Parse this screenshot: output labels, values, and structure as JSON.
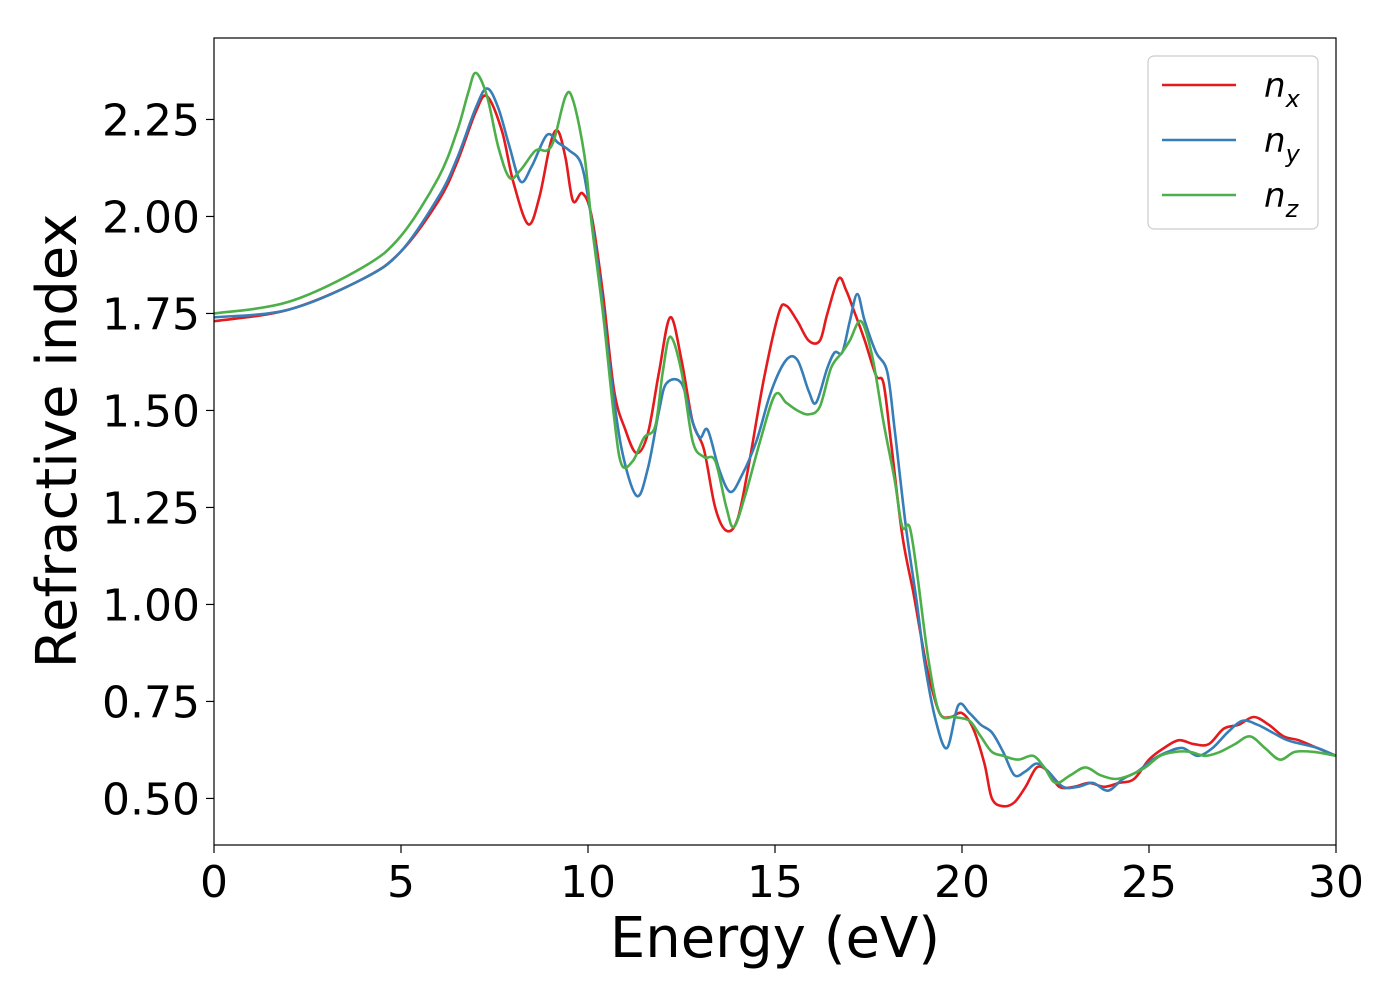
{
  "chart_data": {
    "type": "line",
    "title": "",
    "xlabel": "Energy (eV)",
    "ylabel": "Refractive index",
    "xlim": [
      0,
      30
    ],
    "ylim": [
      0.38,
      2.46
    ],
    "xticks": [
      0,
      5,
      10,
      15,
      20,
      25,
      30
    ],
    "xtick_labels": [
      "0",
      "5",
      "10",
      "15",
      "20",
      "25",
      "30"
    ],
    "yticks": [
      0.5,
      0.75,
      1.0,
      1.25,
      1.5,
      1.75,
      2.0,
      2.25
    ],
    "ytick_labels": [
      "0.50",
      "0.75",
      "1.00",
      "1.25",
      "1.50",
      "1.75",
      "2.00",
      "2.25"
    ],
    "grid": false,
    "legend_position": "top-right",
    "series": [
      {
        "name": "n_x",
        "base": "n",
        "sub": "x",
        "color": "#e41a1c",
        "points": [
          [
            0,
            1.73
          ],
          [
            2,
            1.76
          ],
          [
            4,
            1.84
          ],
          [
            5,
            1.91
          ],
          [
            6,
            2.04
          ],
          [
            6.5,
            2.14
          ],
          [
            7,
            2.27
          ],
          [
            7.3,
            2.31
          ],
          [
            7.7,
            2.22
          ],
          [
            8.0,
            2.09
          ],
          [
            8.4,
            1.98
          ],
          [
            8.7,
            2.05
          ],
          [
            9.0,
            2.19
          ],
          [
            9.2,
            2.22
          ],
          [
            9.4,
            2.15
          ],
          [
            9.6,
            2.04
          ],
          [
            9.85,
            2.06
          ],
          [
            10.1,
            2.0
          ],
          [
            10.4,
            1.8
          ],
          [
            10.7,
            1.55
          ],
          [
            11.0,
            1.45
          ],
          [
            11.3,
            1.39
          ],
          [
            11.6,
            1.44
          ],
          [
            11.9,
            1.6
          ],
          [
            12.2,
            1.74
          ],
          [
            12.5,
            1.63
          ],
          [
            12.8,
            1.47
          ],
          [
            13.1,
            1.4
          ],
          [
            13.4,
            1.25
          ],
          [
            13.7,
            1.19
          ],
          [
            14.0,
            1.22
          ],
          [
            14.3,
            1.36
          ],
          [
            14.7,
            1.58
          ],
          [
            15.1,
            1.75
          ],
          [
            15.3,
            1.77
          ],
          [
            15.6,
            1.73
          ],
          [
            15.9,
            1.68
          ],
          [
            16.2,
            1.68
          ],
          [
            16.4,
            1.75
          ],
          [
            16.7,
            1.84
          ],
          [
            16.9,
            1.81
          ],
          [
            17.1,
            1.76
          ],
          [
            17.4,
            1.68
          ],
          [
            17.7,
            1.59
          ],
          [
            17.9,
            1.57
          ],
          [
            18.1,
            1.42
          ],
          [
            18.4,
            1.18
          ],
          [
            18.7,
            1.03
          ],
          [
            18.9,
            0.92
          ],
          [
            19.1,
            0.82
          ],
          [
            19.4,
            0.72
          ],
          [
            19.7,
            0.71
          ],
          [
            20.0,
            0.72
          ],
          [
            20.3,
            0.68
          ],
          [
            20.6,
            0.59
          ],
          [
            20.8,
            0.5
          ],
          [
            21.1,
            0.48
          ],
          [
            21.4,
            0.49
          ],
          [
            21.7,
            0.53
          ],
          [
            22.0,
            0.58
          ],
          [
            22.3,
            0.57
          ],
          [
            22.6,
            0.53
          ],
          [
            23.0,
            0.53
          ],
          [
            23.4,
            0.54
          ],
          [
            23.8,
            0.53
          ],
          [
            24.2,
            0.54
          ],
          [
            24.6,
            0.55
          ],
          [
            25.0,
            0.6
          ],
          [
            25.4,
            0.63
          ],
          [
            25.8,
            0.65
          ],
          [
            26.2,
            0.64
          ],
          [
            26.6,
            0.64
          ],
          [
            27.0,
            0.68
          ],
          [
            27.4,
            0.69
          ],
          [
            27.8,
            0.71
          ],
          [
            28.2,
            0.69
          ],
          [
            28.6,
            0.66
          ],
          [
            29.0,
            0.65
          ],
          [
            29.5,
            0.63
          ],
          [
            30.0,
            0.61
          ]
        ]
      },
      {
        "name": "n_y",
        "base": "n",
        "sub": "y",
        "color": "#377eb8",
        "points": [
          [
            0,
            1.74
          ],
          [
            2,
            1.76
          ],
          [
            4,
            1.84
          ],
          [
            5,
            1.91
          ],
          [
            6,
            2.05
          ],
          [
            6.5,
            2.15
          ],
          [
            7,
            2.28
          ],
          [
            7.3,
            2.33
          ],
          [
            7.6,
            2.28
          ],
          [
            7.9,
            2.18
          ],
          [
            8.2,
            2.09
          ],
          [
            8.5,
            2.13
          ],
          [
            8.9,
            2.21
          ],
          [
            9.2,
            2.19
          ],
          [
            9.5,
            2.17
          ],
          [
            9.8,
            2.14
          ],
          [
            10.0,
            2.05
          ],
          [
            10.3,
            1.85
          ],
          [
            10.6,
            1.6
          ],
          [
            10.9,
            1.4
          ],
          [
            11.3,
            1.28
          ],
          [
            11.6,
            1.35
          ],
          [
            11.9,
            1.5
          ],
          [
            12.1,
            1.57
          ],
          [
            12.5,
            1.57
          ],
          [
            12.8,
            1.47
          ],
          [
            13.0,
            1.43
          ],
          [
            13.2,
            1.45
          ],
          [
            13.5,
            1.35
          ],
          [
            13.8,
            1.29
          ],
          [
            14.1,
            1.33
          ],
          [
            14.5,
            1.42
          ],
          [
            14.9,
            1.55
          ],
          [
            15.3,
            1.63
          ],
          [
            15.6,
            1.63
          ],
          [
            15.9,
            1.55
          ],
          [
            16.1,
            1.52
          ],
          [
            16.4,
            1.61
          ],
          [
            16.6,
            1.65
          ],
          [
            16.8,
            1.65
          ],
          [
            17.0,
            1.73
          ],
          [
            17.2,
            1.8
          ],
          [
            17.4,
            1.73
          ],
          [
            17.7,
            1.65
          ],
          [
            18.0,
            1.6
          ],
          [
            18.2,
            1.45
          ],
          [
            18.5,
            1.2
          ],
          [
            18.8,
            1.0
          ],
          [
            19.0,
            0.85
          ],
          [
            19.3,
            0.7
          ],
          [
            19.6,
            0.63
          ],
          [
            19.9,
            0.74
          ],
          [
            20.2,
            0.72
          ],
          [
            20.5,
            0.69
          ],
          [
            20.8,
            0.67
          ],
          [
            21.1,
            0.62
          ],
          [
            21.4,
            0.56
          ],
          [
            21.7,
            0.57
          ],
          [
            22.0,
            0.59
          ],
          [
            22.3,
            0.57
          ],
          [
            22.7,
            0.53
          ],
          [
            23.1,
            0.53
          ],
          [
            23.5,
            0.54
          ],
          [
            23.9,
            0.52
          ],
          [
            24.3,
            0.55
          ],
          [
            24.7,
            0.57
          ],
          [
            25.1,
            0.6
          ],
          [
            25.5,
            0.62
          ],
          [
            25.9,
            0.63
          ],
          [
            26.3,
            0.61
          ],
          [
            26.7,
            0.63
          ],
          [
            27.1,
            0.67
          ],
          [
            27.5,
            0.7
          ],
          [
            27.9,
            0.69
          ],
          [
            28.3,
            0.67
          ],
          [
            28.7,
            0.65
          ],
          [
            29.1,
            0.64
          ],
          [
            29.5,
            0.63
          ],
          [
            30.0,
            0.61
          ]
        ]
      },
      {
        "name": "n_z",
        "base": "n",
        "sub": "z",
        "color": "#4daf4a",
        "points": [
          [
            0,
            1.75
          ],
          [
            2,
            1.78
          ],
          [
            4,
            1.87
          ],
          [
            5,
            1.95
          ],
          [
            6,
            2.1
          ],
          [
            6.5,
            2.22
          ],
          [
            6.8,
            2.32
          ],
          [
            7.0,
            2.37
          ],
          [
            7.3,
            2.31
          ],
          [
            7.6,
            2.18
          ],
          [
            7.9,
            2.1
          ],
          [
            8.2,
            2.12
          ],
          [
            8.6,
            2.17
          ],
          [
            8.9,
            2.17
          ],
          [
            9.1,
            2.2
          ],
          [
            9.4,
            2.31
          ],
          [
            9.6,
            2.3
          ],
          [
            9.9,
            2.16
          ],
          [
            10.1,
            1.98
          ],
          [
            10.4,
            1.75
          ],
          [
            10.7,
            1.48
          ],
          [
            10.9,
            1.36
          ],
          [
            11.2,
            1.37
          ],
          [
            11.5,
            1.43
          ],
          [
            11.8,
            1.46
          ],
          [
            12.0,
            1.6
          ],
          [
            12.2,
            1.69
          ],
          [
            12.5,
            1.6
          ],
          [
            12.8,
            1.42
          ],
          [
            13.1,
            1.38
          ],
          [
            13.4,
            1.37
          ],
          [
            13.7,
            1.25
          ],
          [
            13.9,
            1.2
          ],
          [
            14.2,
            1.28
          ],
          [
            14.6,
            1.42
          ],
          [
            15.0,
            1.54
          ],
          [
            15.3,
            1.52
          ],
          [
            15.6,
            1.5
          ],
          [
            15.9,
            1.49
          ],
          [
            16.2,
            1.51
          ],
          [
            16.5,
            1.61
          ],
          [
            16.8,
            1.65
          ],
          [
            17.0,
            1.68
          ],
          [
            17.3,
            1.73
          ],
          [
            17.6,
            1.64
          ],
          [
            17.9,
            1.47
          ],
          [
            18.2,
            1.32
          ],
          [
            18.4,
            1.2
          ],
          [
            18.6,
            1.2
          ],
          [
            18.8,
            1.08
          ],
          [
            19.1,
            0.86
          ],
          [
            19.4,
            0.72
          ],
          [
            19.8,
            0.71
          ],
          [
            20.2,
            0.7
          ],
          [
            20.5,
            0.66
          ],
          [
            20.8,
            0.62
          ],
          [
            21.1,
            0.61
          ],
          [
            21.5,
            0.6
          ],
          [
            21.9,
            0.61
          ],
          [
            22.2,
            0.58
          ],
          [
            22.5,
            0.54
          ],
          [
            22.9,
            0.56
          ],
          [
            23.3,
            0.58
          ],
          [
            23.7,
            0.56
          ],
          [
            24.1,
            0.55
          ],
          [
            24.5,
            0.56
          ],
          [
            24.9,
            0.58
          ],
          [
            25.3,
            0.61
          ],
          [
            25.7,
            0.62
          ],
          [
            26.1,
            0.62
          ],
          [
            26.5,
            0.61
          ],
          [
            26.9,
            0.62
          ],
          [
            27.3,
            0.64
          ],
          [
            27.7,
            0.66
          ],
          [
            28.1,
            0.63
          ],
          [
            28.5,
            0.6
          ],
          [
            28.9,
            0.62
          ],
          [
            29.4,
            0.62
          ],
          [
            30.0,
            0.61
          ]
        ]
      }
    ]
  }
}
